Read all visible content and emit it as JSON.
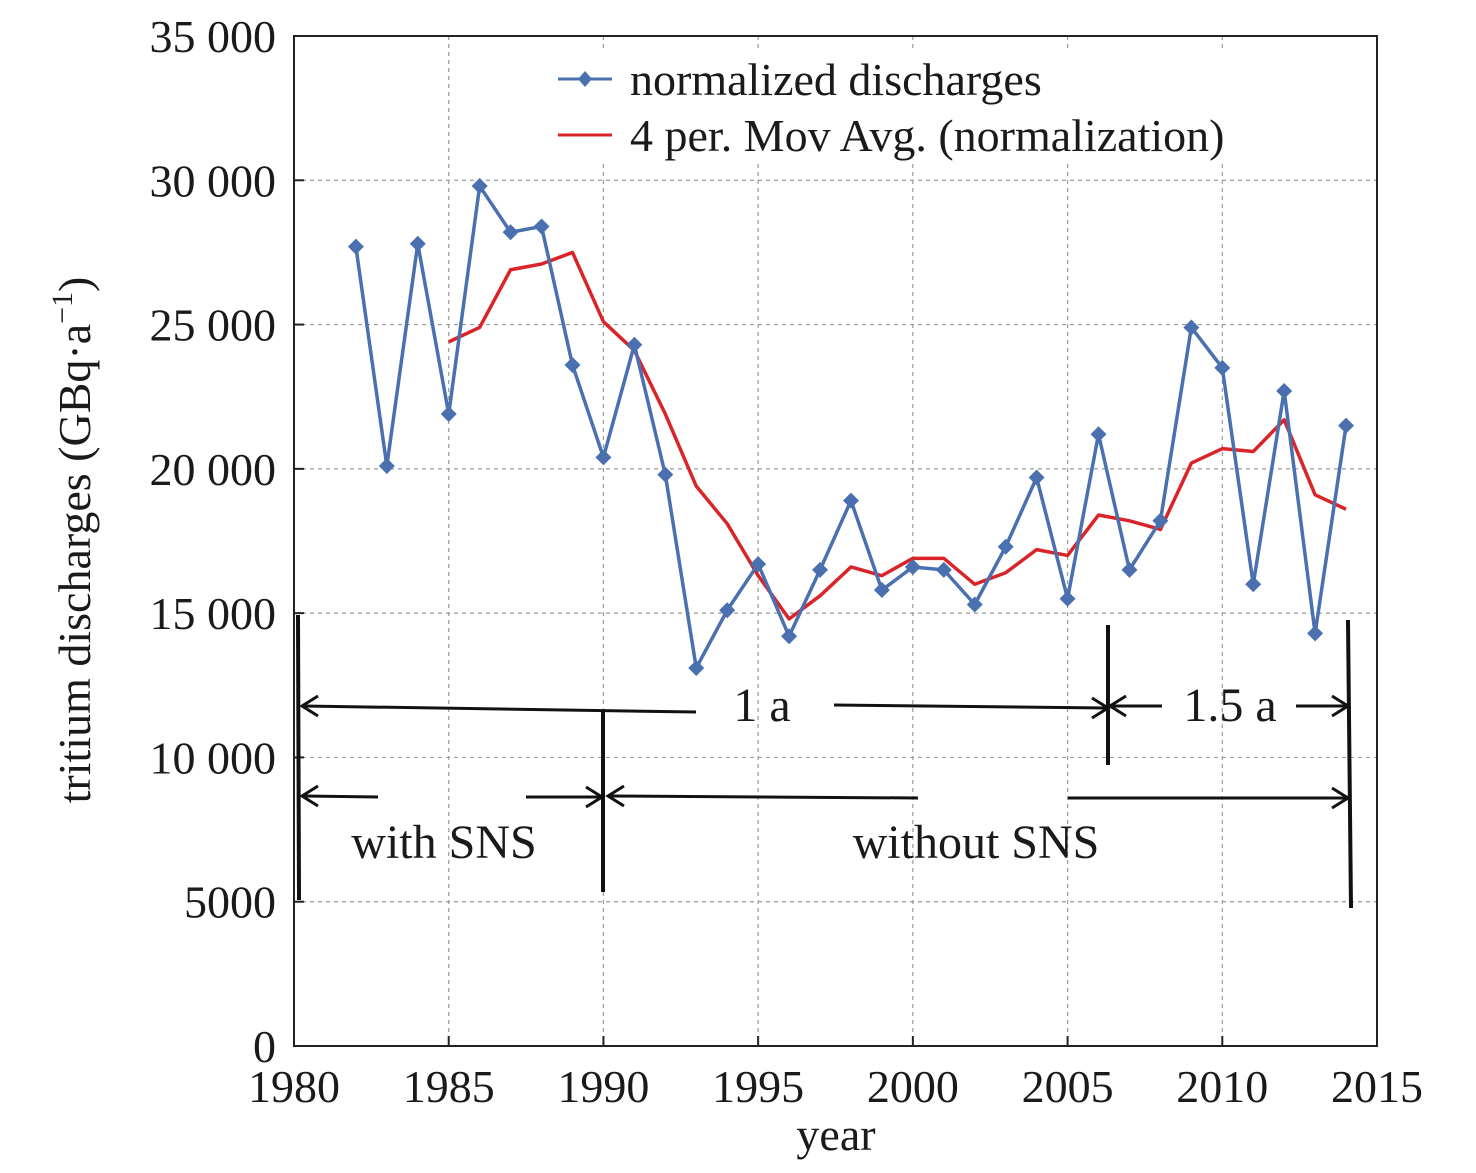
{
  "chart_data": {
    "type": "line",
    "xlabel": "year",
    "ylabel": "tritium discharges (GBq·a",
    "ylabel_sup": "−1",
    "ylabel_close": ")",
    "xlim": [
      1980,
      2015
    ],
    "ylim": [
      0,
      35000
    ],
    "x_ticks": [
      1980,
      1985,
      1990,
      1995,
      2000,
      2005,
      2010,
      2015
    ],
    "x_tick_labels": [
      "1980",
      "1985",
      "1990",
      "1995",
      "2000",
      "2005",
      "2010",
      "2015"
    ],
    "y_ticks": [
      0,
      5000,
      10000,
      15000,
      20000,
      25000,
      30000,
      35000
    ],
    "y_tick_labels": [
      "0",
      "5000",
      "10 000",
      "15 000",
      "20 000",
      "25 000",
      "30 000",
      "35 000"
    ],
    "grid": true,
    "legend_position": "top-right",
    "series": [
      {
        "name": "normalized discharges",
        "color": "#4a70b0",
        "marker": "diamond",
        "x": [
          1982,
          1983,
          1984,
          1985,
          1986,
          1987,
          1988,
          1989,
          1990,
          1991,
          1992,
          1993,
          1994,
          1995,
          1996,
          1997,
          1998,
          1999,
          2000,
          2001,
          2002,
          2003,
          2004,
          2005,
          2006,
          2007,
          2008,
          2009,
          2010,
          2011,
          2012,
          2013,
          2014
        ],
        "y": [
          27700,
          20100,
          27800,
          21900,
          29800,
          28200,
          28400,
          23600,
          20400,
          24300,
          19800,
          13100,
          15100,
          16700,
          14200,
          16500,
          18900,
          15800,
          16600,
          16500,
          15300,
          17300,
          19700,
          15500,
          21200,
          16500,
          18200,
          24900,
          23500,
          16000,
          22700,
          14300,
          21500
        ]
      },
      {
        "name": "4 per. Mov Avg. (normalization)",
        "color": "#d9252a",
        "marker": "none",
        "x": [
          1985,
          1986,
          1987,
          1988,
          1989,
          1990,
          1991,
          1992,
          1993,
          1994,
          1995,
          1996,
          1997,
          1998,
          1999,
          2000,
          2001,
          2002,
          2003,
          2004,
          2005,
          2006,
          2007,
          2008,
          2009,
          2010,
          2011,
          2012,
          2013,
          2014
        ],
        "y": [
          24400,
          24900,
          26900,
          27100,
          27500,
          25100,
          24100,
          21900,
          19400,
          18100,
          16300,
          14800,
          15600,
          16600,
          16300,
          16900,
          16900,
          16000,
          16400,
          17200,
          17000,
          18400,
          18200,
          17900,
          20200,
          20700,
          20600,
          21700,
          19100,
          18600
        ]
      }
    ],
    "annotations": {
      "period_1a": "1 a",
      "period_15a": "1.5 a",
      "with_sns": "with SNS",
      "without_sns": "without SNS"
    }
  }
}
